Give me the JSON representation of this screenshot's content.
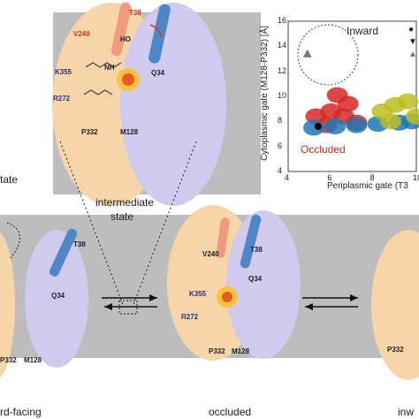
{
  "labels": {
    "top_left_partial": "tate",
    "intermediate_l1": "intermediate",
    "intermediate_l2": "state",
    "inward_facing_partial": "rd-facing",
    "occluded_state": "occluded",
    "right_partial": "inw"
  },
  "residues": {
    "v240": "V240",
    "t38": "T38",
    "k355": "K355",
    "r272": "R272",
    "q34": "Q34",
    "p332": "P332",
    "m128": "M128",
    "ho": "HO",
    "nh": "NH",
    "p332_m128": "P332",
    "m128_b": "M128"
  },
  "chart_data": {
    "type": "scatter",
    "title": "",
    "xlabel": "Periplasmic gate (T3",
    "ylabel": "Cytoplasmic gate (M128-P332) [Å]",
    "xlim": [
      4,
      10
    ],
    "ylim": [
      4,
      16
    ],
    "x_ticks": [
      "4",
      "6",
      "8",
      "10"
    ],
    "y_ticks": [
      "4",
      "6",
      "8",
      "10",
      "12",
      "14",
      "16"
    ],
    "annotations": [
      "Inward",
      "Occluded"
    ],
    "series": [
      {
        "color": "#d62728",
        "points": [
          [
            5.3,
            8.4
          ],
          [
            6.0,
            8.8
          ],
          [
            6.6,
            8.4
          ],
          [
            7.2,
            7.9
          ],
          [
            5.8,
            7.7
          ],
          [
            6.8,
            9.4
          ],
          [
            6.3,
            10.1
          ]
        ]
      },
      {
        "color": "#1f77b4",
        "points": [
          [
            5.2,
            7.5
          ],
          [
            6.2,
            7.6
          ],
          [
            7.2,
            7.7
          ],
          [
            8.2,
            7.8
          ],
          [
            9.2,
            7.9
          ],
          [
            9.8,
            8.0
          ]
        ]
      },
      {
        "color": "#bcbd22",
        "points": [
          [
            8.4,
            8.8
          ],
          [
            9.0,
            9.3
          ],
          [
            9.6,
            9.6
          ],
          [
            10.0,
            8.4
          ],
          [
            8.8,
            8.0
          ]
        ]
      }
    ],
    "markers": [
      {
        "shape": "circle",
        "x": 5.4,
        "y": 7.6,
        "color": "#000000"
      },
      {
        "shape": "triangle",
        "x": 4.9,
        "y": 13.4,
        "color": "#777777"
      }
    ],
    "legend": [
      "●",
      "▼",
      "▲"
    ],
    "colors": {
      "red": "#d62728",
      "blue": "#1f77b4",
      "olive": "#bcbd22",
      "occluded_text": "#cc2a1f"
    }
  }
}
